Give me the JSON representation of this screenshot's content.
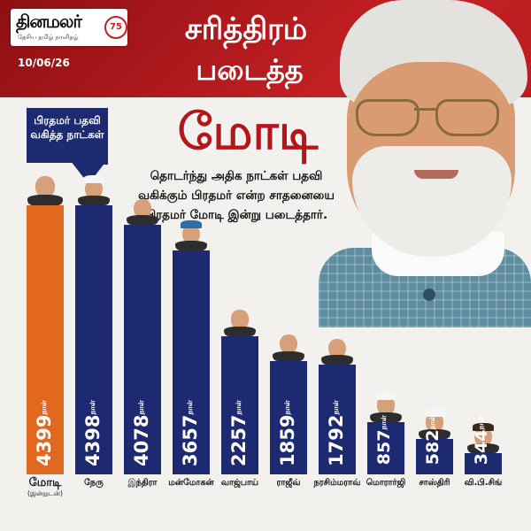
{
  "brand": {
    "name": "தினமலர்",
    "tagline": "தேசிய தமிழ் நாளிதழ்",
    "badge": "75"
  },
  "date": "10/06/26",
  "headline": {
    "line1": "சரித்திரம்",
    "line2": "படைத்த",
    "name": "மோடி"
  },
  "description": "தொடர்ந்து அதிக நாட்கள் பதவி வகிக்கும் பிரதமர் என்ற சாதனையை பிரதமர் மோடி இன்று படைத்தார்.",
  "callout": "பிரதமர் பதவி வகித்த நாட்கள்",
  "colors": {
    "highlight_bar": "#e2681f",
    "bar": "#1d2a72",
    "accent": "#c42024",
    "panel": "#f3f1ee"
  },
  "chart_data": {
    "type": "bar",
    "title": "",
    "xlabel": "",
    "ylabel": "",
    "unit": "நாள்",
    "categories": [
      "மோடி",
      "நேரு",
      "இந்திரா",
      "மன்மோகன்",
      "வாஜ்பாய்",
      "ராஜீவ்",
      "நரசிம்மராவ்",
      "மொரார்ஜி",
      "சாஸ்திரி",
      "வி.பி.சிங்"
    ],
    "values": [
      4399,
      4398,
      4078,
      3657,
      2257,
      1859,
      1792,
      857,
      582,
      344
    ],
    "value_labels": [
      "4399",
      "4398",
      "4078",
      "3657",
      "2257",
      "1859",
      "1792",
      "857",
      "582",
      "344"
    ],
    "category_notes": [
      "(இன்றுடன்)",
      "",
      "",
      "",
      "",
      "",
      "",
      "",
      "",
      ""
    ],
    "highlight_index": 0,
    "legend": "none",
    "grid": false
  },
  "icons": {
    "portrait": "modi-portrait",
    "heads": "leader-portrait-icon"
  }
}
